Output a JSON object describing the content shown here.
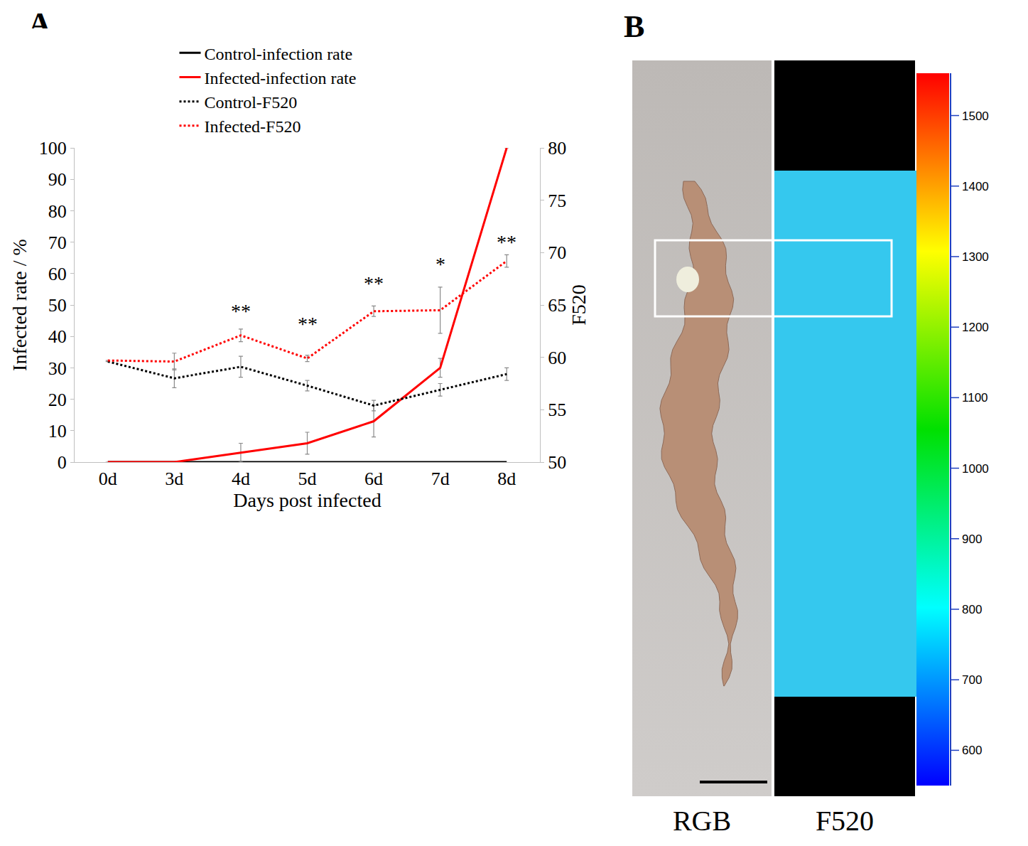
{
  "chart_data": [
    {
      "panel": "A",
      "type": "line",
      "categories": [
        "0d",
        "3d",
        "4d",
        "5d",
        "6d",
        "7d",
        "8d"
      ],
      "x_label": "Days post infected",
      "y_label": "Infected rate / %",
      "y2_label": "F520",
      "ylim": [
        0,
        100
      ],
      "yticks": [
        0,
        10,
        20,
        30,
        40,
        50,
        60,
        70,
        80,
        90,
        100
      ],
      "y2lim": [
        50,
        80
      ],
      "y2ticks": [
        50,
        55,
        60,
        65,
        70,
        75,
        80
      ],
      "legend": "top",
      "grid": false,
      "series": [
        {
          "name": "Control-infection rate",
          "color": "#000000",
          "line_style": "solid",
          "values": [
            0,
            0,
            0,
            0,
            0,
            0,
            0
          ]
        },
        {
          "name": "Infected-infection rate",
          "color": "#ff0000",
          "line_style": "solid",
          "values": [
            0,
            0,
            3,
            6,
            13,
            30,
            100
          ],
          "errors": [
            null,
            null,
            3,
            3.5,
            5,
            3,
            null
          ]
        },
        {
          "name": "Control-F520",
          "color": "#000000",
          "line_style": "dotted",
          "axis": "y2",
          "values": [
            59.6,
            58,
            59.1,
            57.3,
            55.4,
            56.9,
            58.4
          ],
          "errors": [
            null,
            0.9,
            1.0,
            0.5,
            0.5,
            0.6,
            0.6
          ]
        },
        {
          "name": "Infected-F520",
          "color": "#ff0000",
          "line_style": "dotted",
          "axis": "y2",
          "values": [
            59.7,
            59.6,
            62.1,
            59.9,
            64.4,
            64.5,
            69.2
          ],
          "errors": [
            null,
            0.8,
            0.6,
            0.3,
            0.5,
            2.2,
            0.6
          ]
        }
      ],
      "annotations": [
        {
          "x": "4d",
          "y": 64.4,
          "text": "**",
          "axis": "y2"
        },
        {
          "x": "5d",
          "y": 63.2,
          "text": "**",
          "axis": "y2"
        },
        {
          "x": "6d",
          "y": 67.1,
          "text": "**",
          "axis": "y2"
        },
        {
          "x": "7d",
          "y": 68.9,
          "text": "*",
          "axis": "y2"
        },
        {
          "x": "8d",
          "y": 71.0,
          "text": "**",
          "axis": "y2"
        }
      ]
    },
    {
      "panel": "B",
      "type": "image",
      "labels": [
        "RGB",
        "F520"
      ],
      "colorbar": {
        "range": [
          550,
          1560
        ],
        "ticks": [
          600,
          700,
          800,
          900,
          1000,
          1100,
          1200,
          1300,
          1400,
          1500
        ]
      }
    }
  ]
}
